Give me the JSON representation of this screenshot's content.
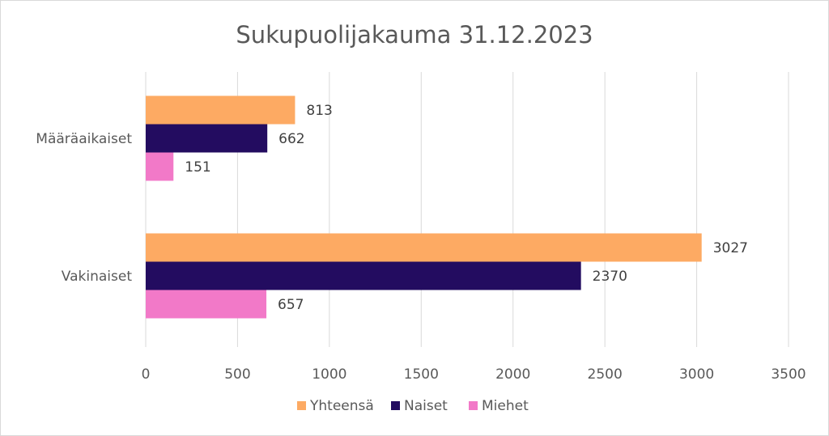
{
  "chart_data": {
    "type": "bar",
    "orientation": "horizontal",
    "title": "Sukupuolijakauma 31.12.2023",
    "categories": [
      "Määräaikaiset",
      "Vakinaiset"
    ],
    "series": [
      {
        "name": "Yhteensä",
        "values": [
          813,
          3027
        ],
        "color": "#fdaa63"
      },
      {
        "name": "Naiset",
        "values": [
          662,
          2370
        ],
        "color": "#230c60"
      },
      {
        "name": "Miehet",
        "values": [
          151,
          657
        ],
        "color": "#f279c8"
      }
    ],
    "xlim": [
      0,
      3500
    ],
    "xticks": [
      0,
      500,
      1000,
      1500,
      2000,
      2500,
      3000,
      3500
    ],
    "xtick_labels": [
      "0",
      "500",
      "1000",
      "1500",
      "2000",
      "2500",
      "3000",
      "3500"
    ],
    "grid": true,
    "data_labels": true,
    "legend_position": "bottom"
  }
}
